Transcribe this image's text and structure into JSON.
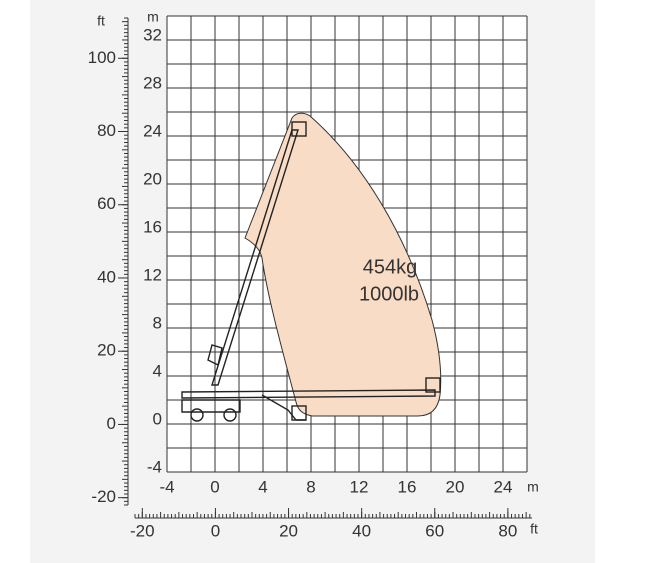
{
  "chart_data": {
    "type": "working-range",
    "x_unit": "m",
    "y_unit": "m",
    "x2_unit": "ft",
    "y2_unit": "ft",
    "xlim": [
      -4,
      26
    ],
    "ylim": [
      -4,
      34
    ],
    "xticks": [
      -4,
      0,
      4,
      8,
      12,
      16,
      20,
      24
    ],
    "yticks": [
      -4,
      0,
      4,
      8,
      12,
      16,
      20,
      24,
      28,
      32
    ],
    "x2lim": [
      -22,
      86.6
    ],
    "x2ticks": [
      -20,
      0,
      20,
      40,
      60,
      80
    ],
    "y2lim": [
      -22,
      111
    ],
    "y2ticks": [
      -20,
      0,
      20,
      40,
      60,
      80,
      100
    ],
    "annotations": [
      "454kg",
      "1000lb"
    ],
    "grid": true
  }
}
